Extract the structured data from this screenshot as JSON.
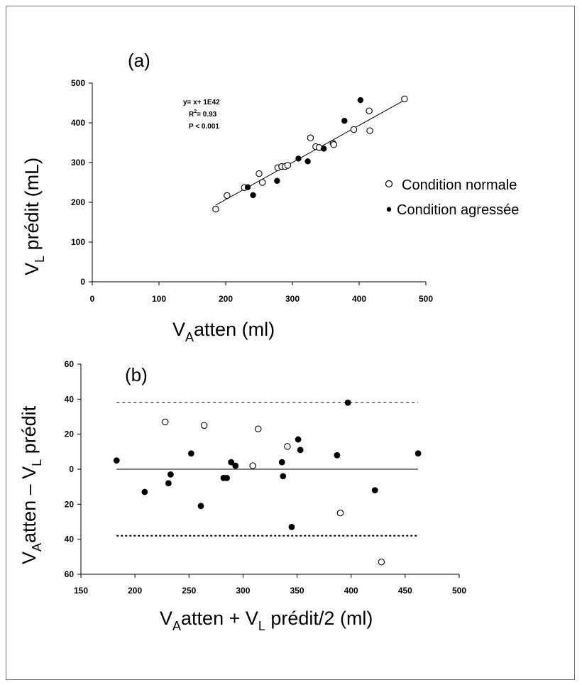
{
  "chart_data": [
    {
      "type": "scatter",
      "panel_label": "(a)",
      "annotation": {
        "equation": "y= x+ 1E42",
        "r2_prefix": "R",
        "r2_sup": "2",
        "r2_suffix": "= 0.93",
        "p": "P < 0.001"
      },
      "xlabel": {
        "main": "V",
        "sub": "A",
        "rest": "atten (ml)"
      },
      "ylabel": {
        "main": "V",
        "sub": "L",
        "rest": " prédit (mL)"
      },
      "xlim": [
        0,
        500
      ],
      "ylim": [
        0,
        500
      ],
      "xticks": [
        "0",
        "100",
        "200",
        "300",
        "400",
        "500"
      ],
      "yticks": [
        "0",
        "100",
        "200",
        "300",
        "400",
        "500"
      ],
      "legend_position": "right",
      "regression_line": {
        "x": [
          185,
          468
        ],
        "y": [
          193,
          457
        ]
      },
      "series": [
        {
          "name": "Condition normale",
          "marker": "open-circle",
          "points": [
            [
              185,
              183
            ],
            [
              202,
              217
            ],
            [
              228,
              237
            ],
            [
              250,
              272
            ],
            [
              255,
              250
            ],
            [
              278,
              287
            ],
            [
              284,
              290
            ],
            [
              289,
              290
            ],
            [
              293,
              293
            ],
            [
              327,
              362
            ],
            [
              335,
              340
            ],
            [
              340,
              338
            ],
            [
              361,
              348
            ],
            [
              362,
              345
            ],
            [
              392,
              383
            ],
            [
              415,
              430
            ],
            [
              416,
              380
            ],
            [
              468,
              460
            ]
          ]
        },
        {
          "name": "Condition agressée",
          "marker": "filled-circle",
          "points": [
            [
              233,
              238
            ],
            [
              241,
              218
            ],
            [
              277,
              254
            ],
            [
              309,
              310
            ],
            [
              323,
              303
            ],
            [
              347,
              335
            ],
            [
              378,
              405
            ],
            [
              402,
              457
            ]
          ]
        }
      ]
    },
    {
      "type": "scatter",
      "panel_label": "(b)",
      "xlabel": {
        "main": "V",
        "sub": "A",
        "mid": "atten + V",
        "sub2": "L",
        "rest": " prédit/2 (ml)"
      },
      "ylabel": {
        "main": "V",
        "sub": "A",
        "mid": "atten – V",
        "sub2": "L",
        "rest": " prédit"
      },
      "xlim": [
        150,
        500
      ],
      "ylim": [
        -60,
        60
      ],
      "xticks": [
        "150",
        "200",
        "250",
        "300",
        "350",
        "400",
        "450",
        "500"
      ],
      "yticks": [
        "60",
        "40",
        "20",
        "0",
        "20",
        "40",
        "60"
      ],
      "mean_line": {
        "y": 0,
        "x": [
          183,
          462
        ]
      },
      "limit_lines": [
        {
          "y": 38,
          "x": [
            183,
            462
          ]
        },
        {
          "y": -38,
          "x": [
            183,
            462
          ]
        }
      ],
      "series": [
        {
          "name": "Condition normale",
          "marker": "open-circle",
          "points": [
            [
              228,
              27
            ],
            [
              264,
              25
            ],
            [
              309,
              2
            ],
            [
              314,
              23
            ],
            [
              341,
              13
            ],
            [
              390,
              -25
            ],
            [
              428,
              -53
            ]
          ]
        },
        {
          "name": "Condition agressée",
          "marker": "filled-circle",
          "points": [
            [
              183,
              5
            ],
            [
              209,
              -13
            ],
            [
              231,
              -8
            ],
            [
              233,
              -3
            ],
            [
              252,
              9
            ],
            [
              261,
              -21
            ],
            [
              282,
              -5
            ],
            [
              285,
              -5
            ],
            [
              289,
              4
            ],
            [
              293,
              2
            ],
            [
              336,
              4
            ],
            [
              337,
              -4
            ],
            [
              345,
              -33
            ],
            [
              351,
              17
            ],
            [
              353,
              11
            ],
            [
              387,
              8
            ],
            [
              397,
              38
            ],
            [
              422,
              -12
            ],
            [
              462,
              9
            ]
          ]
        }
      ]
    }
  ]
}
